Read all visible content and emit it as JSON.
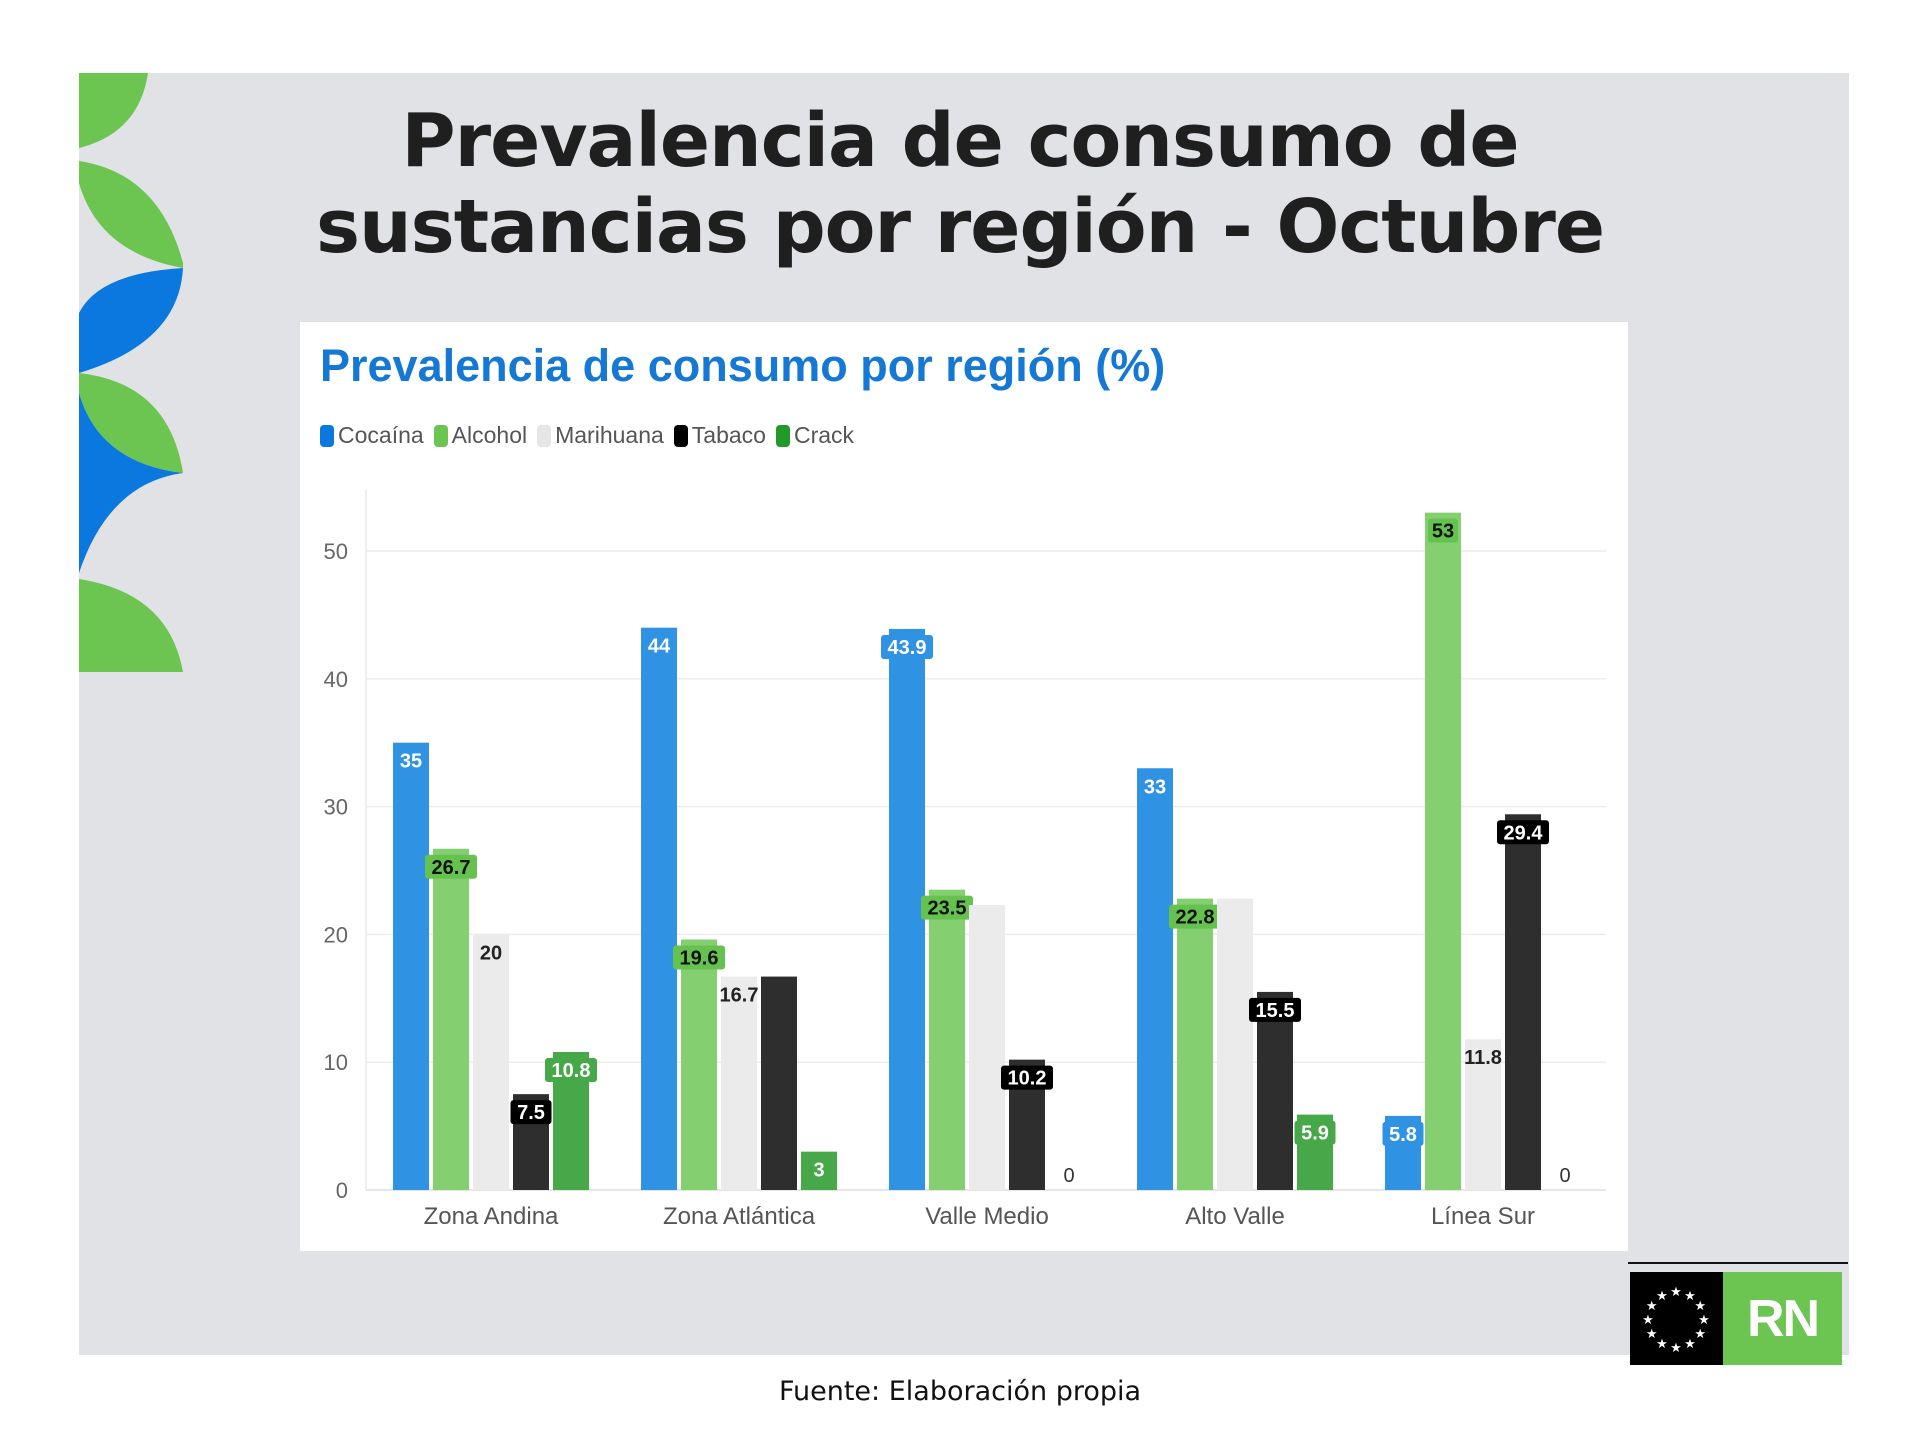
{
  "slide": {
    "title_line1": "Prevalencia de consumo de",
    "title_line2": "sustancias por región - Octubre",
    "footer": "Fuente: Elaboración propia",
    "logo_text": "RN"
  },
  "colors": {
    "panel": "#e1e2e6",
    "leaf_green": "#6cc551",
    "leaf_blue": "#0b78df"
  },
  "chart_data": {
    "type": "bar",
    "title": "Prevalencia de consumo por región (%)",
    "xlabel": "",
    "ylabel": "",
    "ylim": [
      0,
      53
    ],
    "yticks": [
      0,
      10,
      20,
      30,
      40,
      50
    ],
    "grid": true,
    "legend_position": "top-left",
    "categories": [
      "Zona Andina",
      "Zona Atlántica",
      "Valle Medio",
      "Alto Valle",
      "Línea Sur"
    ],
    "series": [
      {
        "name": "Cocaína",
        "color": "#2f92e3",
        "legend_color": "#0b78df",
        "label_bg": "#2f92e3",
        "label_color": "#ffffff",
        "values": [
          35,
          44,
          43.9,
          33,
          5.8
        ],
        "labels_shown": [
          true,
          true,
          true,
          true,
          true
        ]
      },
      {
        "name": "Alcohol",
        "color": "#84d070",
        "legend_color": "#6cc551",
        "label_bg": "#66c24f",
        "label_color": "#111111",
        "values": [
          26.7,
          19.6,
          23.5,
          22.8,
          53
        ],
        "labels_shown": [
          true,
          true,
          true,
          true,
          true
        ]
      },
      {
        "name": "Marihuana",
        "color": "#ebebeb",
        "legend_color": "#e6e6e6",
        "label_bg": "",
        "label_color": "#222222",
        "values": [
          20,
          16.7,
          22.3,
          22.8,
          11.8
        ],
        "labels_shown": [
          true,
          true,
          false,
          false,
          true
        ]
      },
      {
        "name": "Tabaco",
        "color": "#2e2e2e",
        "legend_color": "#000000",
        "label_bg": "#000000",
        "label_color": "#ffffff",
        "values": [
          7.5,
          16.7,
          10.2,
          15.5,
          29.4
        ],
        "labels_shown": [
          true,
          false,
          true,
          true,
          true
        ]
      },
      {
        "name": "Crack",
        "color": "#47a84a",
        "legend_color": "#229a2a",
        "label_bg": "#47a84a",
        "label_color": "#ffffff",
        "values": [
          10.8,
          3,
          0,
          5.9,
          0
        ],
        "labels_shown": [
          true,
          true,
          true,
          true,
          true
        ]
      }
    ]
  }
}
